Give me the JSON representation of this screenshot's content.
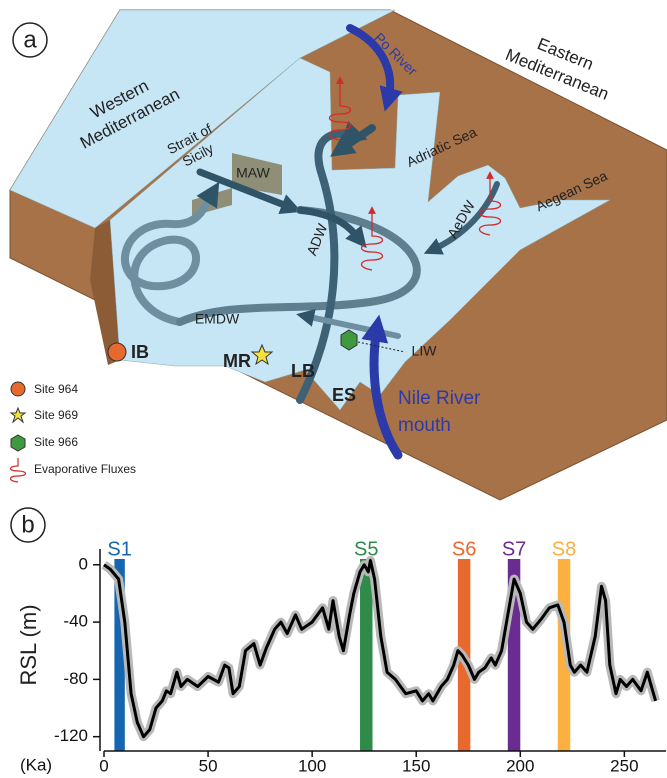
{
  "panel_a": {
    "panel_label": "a",
    "regions": {
      "western": [
        "Western",
        "Mediterranean"
      ],
      "eastern": [
        "Eastern",
        "Mediterranean"
      ],
      "strait": [
        "Strait of",
        "Sicily"
      ],
      "po": "Po River",
      "adriatic": "Adriatic Sea",
      "aegean": "Aegean Sea"
    },
    "water_masses": {
      "maw": "MAW",
      "adw": "ADW",
      "aedw": "AeDW",
      "emdw": "EMDW",
      "liw": "LIW"
    },
    "places": {
      "ib": "IB",
      "mr": "MR",
      "lb": "LB",
      "es": "ES",
      "nile": [
        "Nile River",
        "mouth"
      ]
    },
    "legend": [
      "Site 964",
      "Site 969",
      "Site 966",
      "Evaporative Fluxes"
    ]
  },
  "chart_data": {
    "type": "line",
    "panel_label": "b",
    "y_label": "RSL (m)",
    "x_label": "(Ka)",
    "xlim": [
      0,
      270
    ],
    "xticks": [
      0,
      50,
      100,
      150,
      200,
      250
    ],
    "ylim": [
      -130,
      18
    ],
    "yticks": [
      0,
      -40,
      -80,
      -120
    ],
    "stages": [
      {
        "name": "S1",
        "start": 5,
        "end": 10,
        "color": "#1565b0"
      },
      {
        "name": "S5",
        "start": 123,
        "end": 129,
        "color": "#2e8b4a"
      },
      {
        "name": "S6",
        "start": 170,
        "end": 176,
        "color": "#e8692d"
      },
      {
        "name": "S7",
        "start": 194,
        "end": 200,
        "color": "#6a2c91"
      },
      {
        "name": "S8",
        "start": 218,
        "end": 224,
        "color": "#fbb040"
      }
    ],
    "series": [
      {
        "color": "#000000",
        "x": [
          0,
          3,
          7,
          10,
          13,
          16,
          19,
          22,
          25,
          28,
          30,
          32,
          35,
          37,
          40,
          45,
          50,
          55,
          58,
          60,
          62,
          65,
          68,
          72,
          75,
          78,
          82,
          85,
          88,
          92,
          95,
          100,
          105,
          108,
          110,
          113,
          115,
          118,
          120,
          123,
          125,
          127,
          128,
          130,
          133,
          136,
          140,
          145,
          150,
          153,
          156,
          158,
          162,
          165,
          168,
          170,
          172,
          175,
          178,
          180,
          183,
          186,
          188,
          191,
          194,
          197,
          200,
          203,
          206,
          210,
          214,
          218,
          221,
          224,
          226,
          229,
          232,
          236,
          239,
          241,
          243,
          246,
          248,
          251,
          254,
          258,
          261,
          265
        ],
        "values": [
          0,
          -3,
          -10,
          -40,
          -90,
          -110,
          -120,
          -115,
          -100,
          -95,
          -88,
          -90,
          -75,
          -85,
          -80,
          -85,
          -78,
          -82,
          -70,
          -72,
          -90,
          -85,
          -60,
          -55,
          -70,
          -58,
          -45,
          -40,
          -48,
          -35,
          -45,
          -40,
          -30,
          -45,
          -25,
          -50,
          -60,
          -35,
          -20,
          -5,
          0,
          -5,
          3,
          -10,
          -50,
          -75,
          -80,
          -90,
          -88,
          -95,
          -90,
          -95,
          -85,
          -80,
          -70,
          -60,
          -63,
          -70,
          -80,
          -75,
          -72,
          -65,
          -70,
          -60,
          -35,
          -10,
          -20,
          -40,
          -45,
          -38,
          -30,
          -28,
          -40,
          -70,
          -75,
          -70,
          -75,
          -50,
          -15,
          -25,
          -70,
          -90,
          -80,
          -85,
          -80,
          -88,
          -75,
          -95
        ]
      }
    ]
  }
}
